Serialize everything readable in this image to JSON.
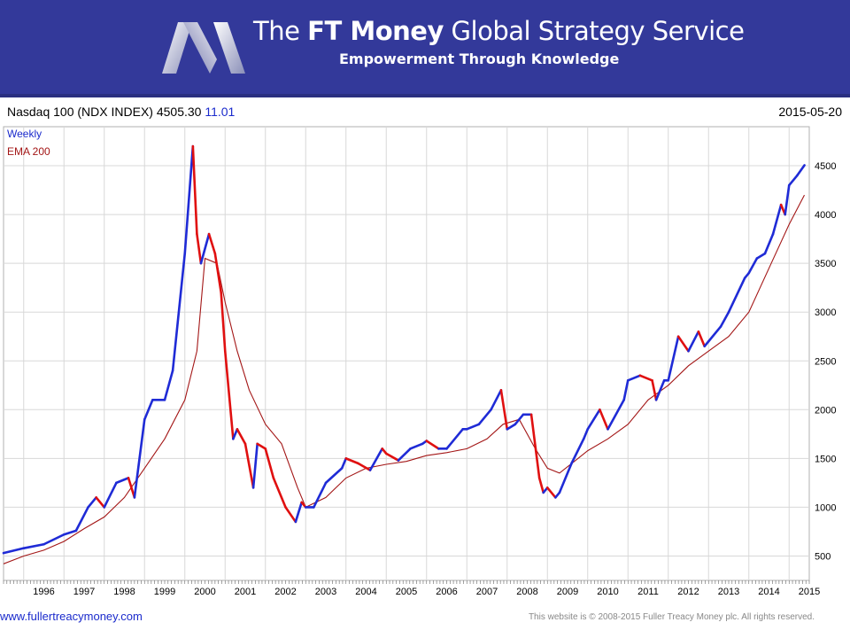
{
  "banner": {
    "title_pre": "The ",
    "title_bold": "FT Money",
    "title_post": " Global Strategy Service",
    "subtitle": "Empowerment Through Knowledge",
    "brand_color": "#33399a"
  },
  "header": {
    "title": "Nasdaq 100 (NDX INDEX) 4505.30",
    "change": "11.01",
    "date": "2015-05-20"
  },
  "footer": {
    "url": "www.fullertreacymoney.com",
    "copyright": "This website is © 2008-2015 Fuller Treacy Money plc. All rights reserved."
  },
  "chart_data": {
    "type": "line",
    "legend": [
      "Weekly",
      "EMA 200"
    ],
    "legend_position": "top-left",
    "colors": {
      "up": "#1f2bd6",
      "down": "#e01010",
      "ema": "#a31616"
    },
    "grid": true,
    "ylim": [
      250,
      4900
    ],
    "xlim": [
      1995.5,
      2015.5
    ],
    "yticks": [
      500,
      1000,
      1500,
      2000,
      2500,
      3000,
      3500,
      4000,
      4500
    ],
    "xticks": [
      "1996",
      "1997",
      "1998",
      "1999",
      "2000",
      "2001",
      "2002",
      "2003",
      "2004",
      "2005",
      "2006",
      "2007",
      "2008",
      "2009",
      "2010",
      "2011",
      "2012",
      "2013",
      "2014",
      "2015"
    ],
    "series": [
      {
        "name": "Weekly",
        "x": [
          1995.5,
          1996.0,
          1996.5,
          1997.0,
          1997.3,
          1997.6,
          1997.8,
          1998.0,
          1998.3,
          1998.6,
          1998.75,
          1999.0,
          1999.2,
          1999.5,
          1999.7,
          2000.0,
          2000.2,
          2000.3,
          2000.4,
          2000.6,
          2000.75,
          2000.9,
          2001.0,
          2001.2,
          2001.3,
          2001.5,
          2001.7,
          2001.8,
          2002.0,
          2002.2,
          2002.5,
          2002.75,
          2002.9,
          2003.0,
          2003.2,
          2003.5,
          2003.9,
          2004.0,
          2004.3,
          2004.6,
          2004.9,
          2005.0,
          2005.3,
          2005.6,
          2005.9,
          2006.0,
          2006.3,
          2006.5,
          2006.9,
          2007.0,
          2007.3,
          2007.6,
          2007.85,
          2008.0,
          2008.2,
          2008.4,
          2008.6,
          2008.8,
          2008.9,
          2009.0,
          2009.2,
          2009.3,
          2009.6,
          2009.9,
          2010.0,
          2010.3,
          2010.5,
          2010.9,
          2011.0,
          2011.3,
          2011.6,
          2011.7,
          2011.9,
          2012.0,
          2012.25,
          2012.5,
          2012.75,
          2012.9,
          2013.0,
          2013.3,
          2013.5,
          2013.9,
          2014.0,
          2014.2,
          2014.4,
          2014.6,
          2014.8,
          2014.9,
          2015.0,
          2015.2,
          2015.38
        ],
        "y": [
          530,
          580,
          620,
          720,
          760,
          1000,
          1100,
          1000,
          1250,
          1300,
          1100,
          1900,
          2100,
          2100,
          2400,
          3600,
          4700,
          3800,
          3500,
          3800,
          3600,
          3200,
          2600,
          1700,
          1800,
          1650,
          1200,
          1650,
          1600,
          1300,
          1000,
          850,
          1050,
          1000,
          1000,
          1250,
          1400,
          1500,
          1450,
          1380,
          1600,
          1550,
          1480,
          1600,
          1650,
          1680,
          1600,
          1600,
          1800,
          1800,
          1850,
          2000,
          2200,
          1800,
          1850,
          1950,
          1950,
          1300,
          1150,
          1200,
          1100,
          1150,
          1450,
          1700,
          1800,
          2000,
          1800,
          2100,
          2300,
          2350,
          2300,
          2100,
          2300,
          2300,
          2750,
          2600,
          2800,
          2650,
          2700,
          2850,
          3000,
          3350,
          3400,
          3550,
          3600,
          3800,
          4100,
          4000,
          4300,
          4400,
          4505
        ]
      },
      {
        "name": "EMA 200",
        "x": [
          1995.5,
          1996.0,
          1996.5,
          1997.0,
          1997.5,
          1998.0,
          1998.5,
          1999.0,
          1999.5,
          2000.0,
          2000.3,
          2000.5,
          2000.8,
          2001.0,
          2001.3,
          2001.6,
          2002.0,
          2002.4,
          2002.8,
          2003.0,
          2003.5,
          2004.0,
          2004.5,
          2005.0,
          2005.5,
          2006.0,
          2006.5,
          2007.0,
          2007.5,
          2007.9,
          2008.3,
          2008.7,
          2009.0,
          2009.3,
          2009.7,
          2010.0,
          2010.5,
          2011.0,
          2011.5,
          2012.0,
          2012.5,
          2013.0,
          2013.5,
          2014.0,
          2014.5,
          2015.0,
          2015.38
        ],
        "y": [
          420,
          500,
          560,
          650,
          780,
          900,
          1100,
          1400,
          1700,
          2100,
          2600,
          3550,
          3500,
          3100,
          2600,
          2200,
          1850,
          1650,
          1200,
          1000,
          1100,
          1300,
          1400,
          1440,
          1470,
          1530,
          1560,
          1600,
          1700,
          1850,
          1900,
          1600,
          1400,
          1350,
          1480,
          1580,
          1700,
          1850,
          2100,
          2250,
          2450,
          2600,
          2750,
          3000,
          3450,
          3900,
          4200
        ]
      }
    ]
  }
}
